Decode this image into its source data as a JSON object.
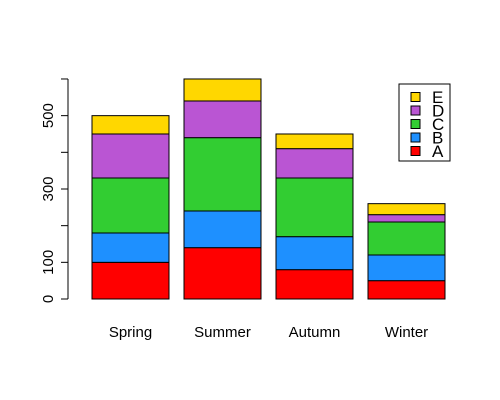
{
  "chart_data": {
    "type": "bar",
    "stacked": true,
    "title": "",
    "xlabel": "",
    "ylabel": "",
    "categories": [
      "Spring",
      "Summer",
      "Autumn",
      "Winter"
    ],
    "series": [
      {
        "name": "A",
        "color": "#FF0000",
        "values": [
          100,
          140,
          80,
          50
        ]
      },
      {
        "name": "B",
        "color": "#1E90FF",
        "values": [
          80,
          100,
          90,
          70
        ]
      },
      {
        "name": "C",
        "color": "#32CD32",
        "values": [
          150,
          200,
          160,
          90
        ]
      },
      {
        "name": "D",
        "color": "#BA55D3",
        "values": [
          120,
          100,
          80,
          20
        ]
      },
      {
        "name": "E",
        "color": "#FFD700",
        "values": [
          50,
          60,
          40,
          30
        ]
      }
    ],
    "ylim": [
      0,
      600
    ],
    "y_ticks": [
      0,
      100,
      200,
      300,
      400,
      500,
      600
    ],
    "y_tick_labels": [
      "0",
      "100",
      "",
      "300",
      "",
      "500",
      ""
    ],
    "grid": false,
    "legend": {
      "placement": "top-right",
      "entries": [
        "E",
        "D",
        "C",
        "B",
        "A"
      ]
    }
  }
}
